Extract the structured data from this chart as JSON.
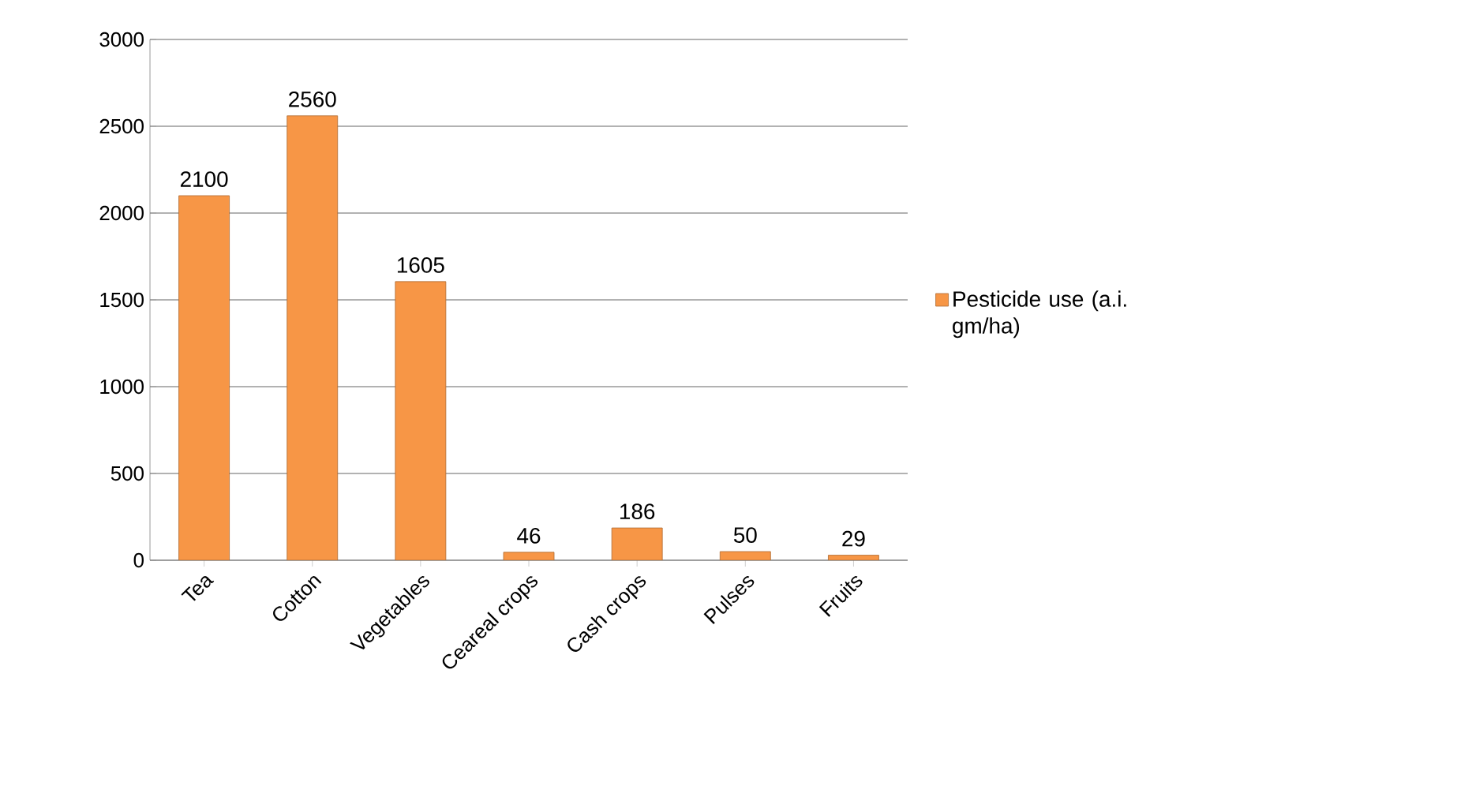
{
  "chart_data": {
    "type": "bar",
    "categories": [
      "Tea",
      "Cotton",
      "Vegetables",
      "Ceareal crops",
      "Cash crops",
      "Pulses",
      "Fruits"
    ],
    "series": [
      {
        "name": "Pesticide use (a.i. gm/ha)",
        "color": "#f79646",
        "values": [
          2100,
          2560,
          1605,
          46,
          186,
          50,
          29
        ]
      }
    ],
    "ylim": [
      0,
      3000
    ],
    "yticks": [
      0,
      500,
      1000,
      1500,
      2000,
      2500,
      3000
    ],
    "grid": "y",
    "legend": "right",
    "data_labels": true
  }
}
